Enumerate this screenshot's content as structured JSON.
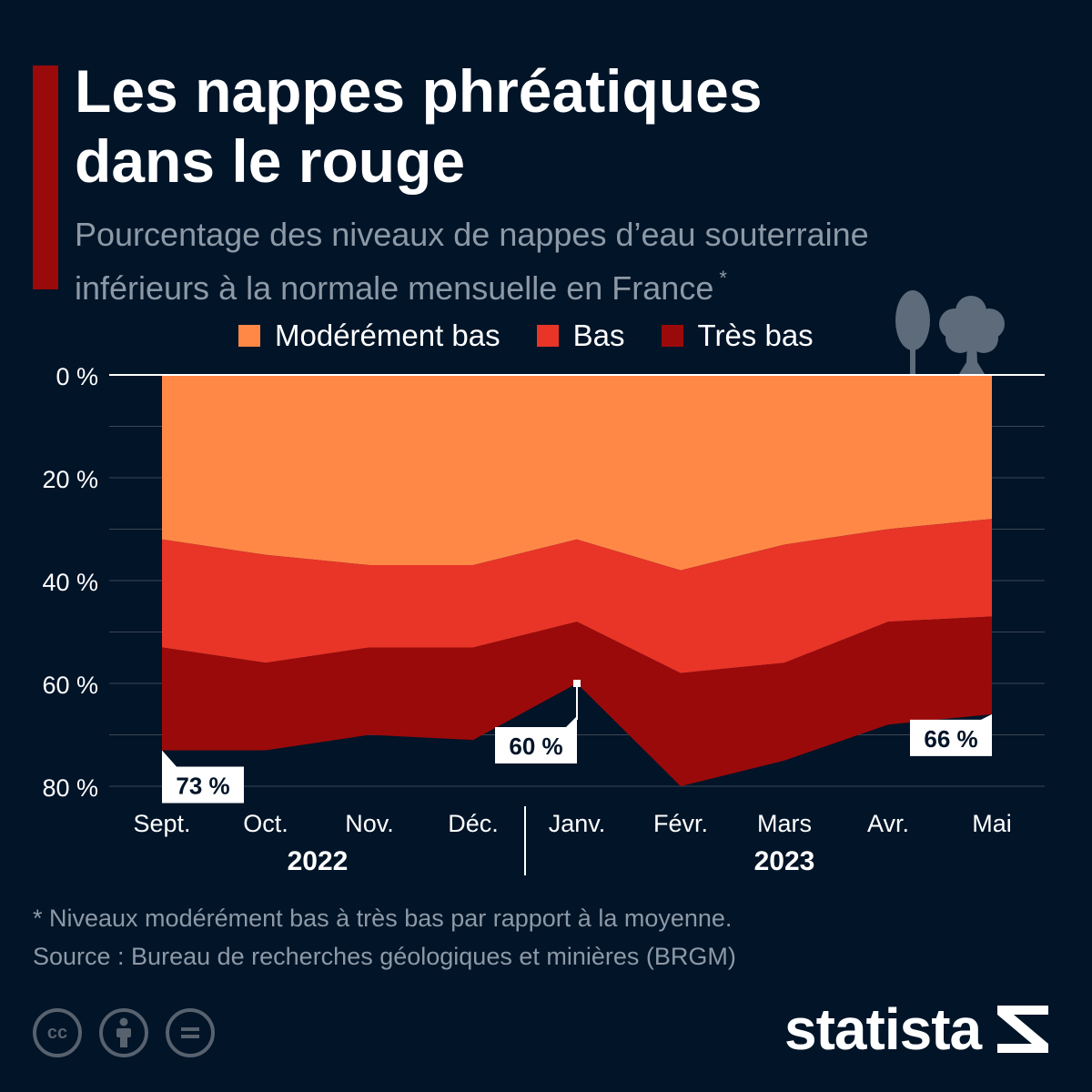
{
  "header": {
    "title_line1": "Les nappes phréatiques",
    "title_line2": "dans le rouge",
    "subtitle_line1": "Pourcentage des niveaux de nappes d’eau souterraine",
    "subtitle_line2": "inférieurs à la normale mensuelle en France",
    "subtitle_mark": "*",
    "accent_color": "#9b0a0a"
  },
  "legend": [
    {
      "label": "Modérément bas",
      "color": "#ff8847"
    },
    {
      "label": "Bas",
      "color": "#e83528"
    },
    {
      "label": "Très bas",
      "color": "#9b0a0a"
    }
  ],
  "chart_data": {
    "type": "area",
    "stacked": true,
    "y_inverted": true,
    "categories": [
      "Sept.",
      "Oct.",
      "Nov.",
      "Déc.",
      "Janv.",
      "Févr.",
      "Mars",
      "Avr.",
      "Mai"
    ],
    "year_groups": [
      {
        "label": "2022",
        "from": "Sept.",
        "to": "Déc."
      },
      {
        "label": "2023",
        "from": "Janv.",
        "to": "Mai"
      }
    ],
    "series": [
      {
        "name": "Modérément bas",
        "color": "#ff8847",
        "values": [
          32,
          35,
          37,
          37,
          32,
          38,
          33,
          30,
          28
        ]
      },
      {
        "name": "Bas",
        "color": "#e83528",
        "values": [
          21,
          21,
          16,
          16,
          16,
          20,
          23,
          18,
          19
        ]
      },
      {
        "name": "Très bas",
        "color": "#9b0a0a",
        "values": [
          20,
          17,
          17,
          18,
          12,
          22,
          19,
          20,
          19
        ]
      }
    ],
    "y_ticks": [
      0,
      20,
      40,
      60,
      80
    ],
    "y_tick_labels": [
      "0 %",
      "20 %",
      "40 %",
      "60 %",
      "80 %"
    ],
    "ylim": [
      0,
      80
    ],
    "grid": true,
    "annotations": [
      {
        "category": "Sept.",
        "value": 73,
        "text": "73 %"
      },
      {
        "category": "Janv.",
        "value": 60,
        "text": "60 %"
      },
      {
        "category": "Mai",
        "value": 66,
        "text": "66 %"
      }
    ],
    "legend_position": "top"
  },
  "footer": {
    "note": "* Niveaux modérément bas à très bas par rapport à la moyenne.",
    "source": "Source : Bureau de recherches géologiques et minières (BRGM)",
    "brand": "statista",
    "license_icons": [
      "cc-icon",
      "attribution-icon",
      "no-derivatives-icon"
    ]
  },
  "decorations": [
    "tree-icon",
    "tree-icon"
  ]
}
